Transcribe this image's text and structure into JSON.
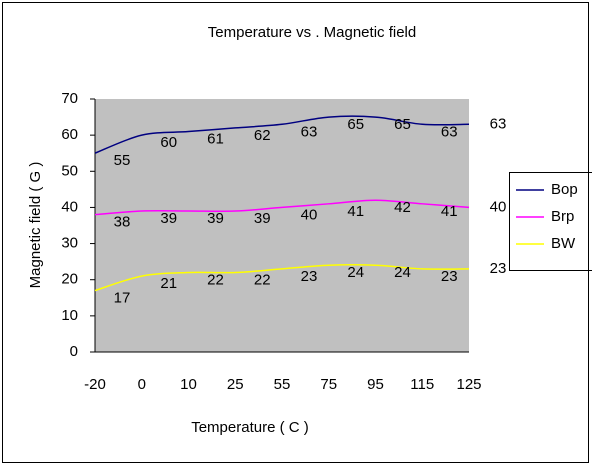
{
  "chart_data": {
    "type": "line",
    "title": "Temperature vs . Magnetic field",
    "x_label": "Temperature ( C )",
    "y_label": "Magnetic field ( G )",
    "categories": [
      "-20",
      "0",
      "10",
      "25",
      "55",
      "75",
      "95",
      "115",
      "125"
    ],
    "series": [
      {
        "name": "Bop",
        "color": "#000080",
        "values": [
          55,
          60,
          61,
          62,
          63,
          65,
          65,
          63,
          63
        ]
      },
      {
        "name": "Brp",
        "color": "#ff00ff",
        "values": [
          38,
          39,
          39,
          39,
          40,
          41,
          42,
          41,
          40
        ]
      },
      {
        "name": "BW",
        "color": "#ffff00",
        "values": [
          17,
          21,
          22,
          22,
          23,
          24,
          24,
          23,
          23
        ]
      }
    ],
    "ylim": [
      0,
      70
    ],
    "yticks": [
      0,
      10,
      20,
      30,
      40,
      50,
      60,
      70
    ],
    "smooth": true,
    "plot_background": "#c0c0c0"
  }
}
